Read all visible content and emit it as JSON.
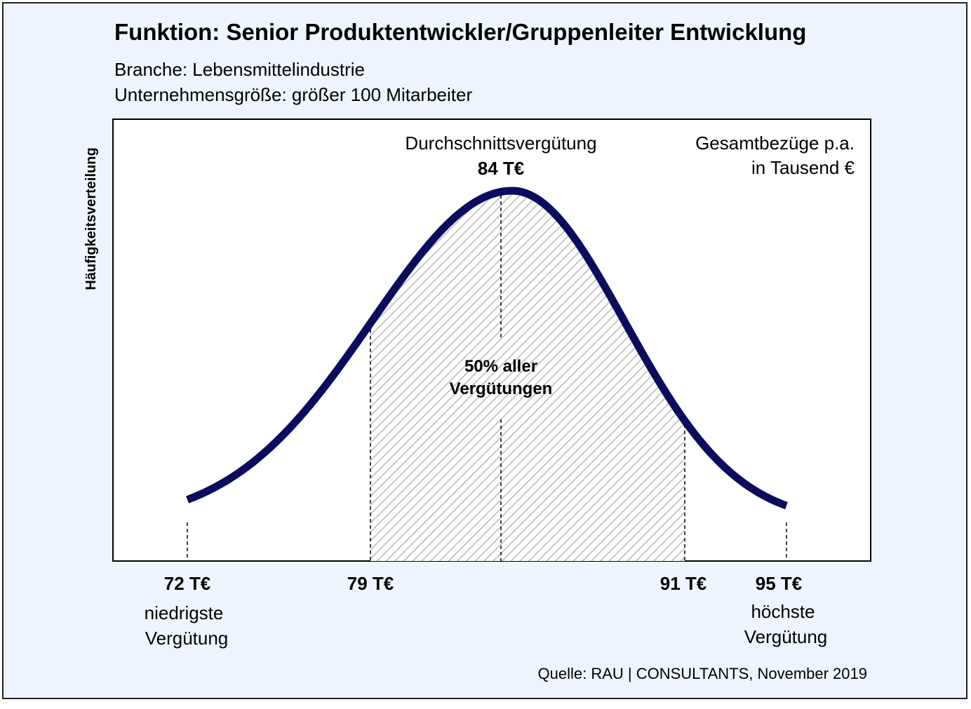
{
  "title": "Funktion: Senior Produktentwickler/Gruppenleiter Entwicklung",
  "subtitle_lines": [
    "Branche: Lebensmittelindustrie",
    "Unternehmensgröße: größer 100 Mitarbeiter"
  ],
  "y_axis_label": "Häufigkeitsverteilung",
  "average": {
    "label": "Durchschnittsvergütung",
    "value": "84 T€"
  },
  "unit_note": [
    "Gesamtbezüge p.a.",
    "in Tausend €"
  ],
  "center_note": [
    "50% aller",
    "Vergütungen"
  ],
  "markers": [
    {
      "label": "72 T€",
      "caption": [
        "niedrigste",
        "Vergütung"
      ]
    },
    {
      "label": "79 T€"
    },
    {
      "label": "91 T€"
    },
    {
      "label": "95 T€",
      "caption": [
        "höchste",
        "Vergütung"
      ]
    }
  ],
  "source": "Quelle: RAU | CONSULTANTS, November 2019"
}
